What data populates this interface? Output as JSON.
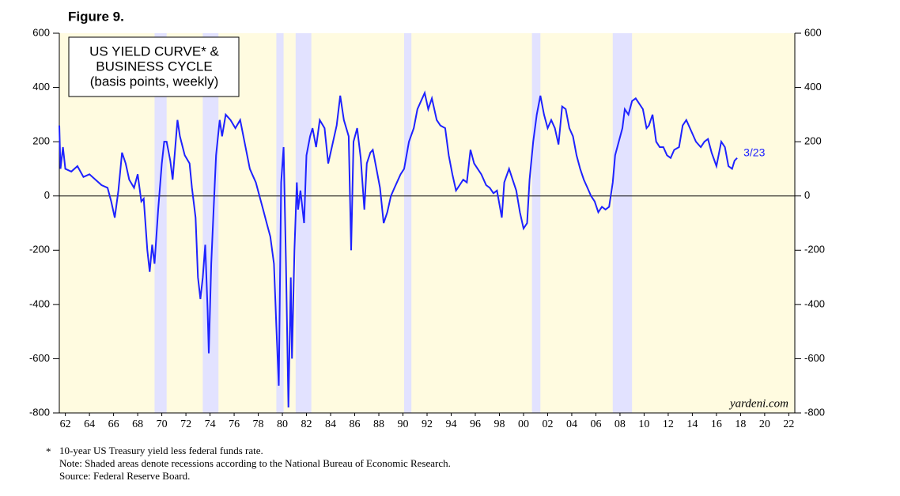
{
  "chart_data": {
    "type": "line",
    "figure_label": "Figure 9.",
    "title": [
      "US YIELD CURVE* &",
      "BUSINESS CYCLE",
      "(basis points, weekly)"
    ],
    "end_label": "3/23",
    "source_mark": "yardeni.com",
    "footnotes": [
      "*",
      "10-year US Treasury yield less federal funds rate.",
      "Note: Shaded areas denote recessions according to the National Bureau of Economic Research.",
      "Source: Federal Reserve Board."
    ],
    "color": "#1e22ff",
    "background": "#fffbe0",
    "recession_color": "#e2e2ff",
    "recessions": [
      [
        1969.9,
        1970.9
      ],
      [
        1973.9,
        1975.2
      ],
      [
        1980.0,
        1980.6
      ],
      [
        1981.6,
        1982.9
      ],
      [
        1990.6,
        1991.2
      ],
      [
        2001.2,
        2001.9
      ],
      [
        2007.9,
        2009.5
      ]
    ],
    "xlim": [
      1962,
      2023
    ],
    "ylim": [
      -800,
      600
    ],
    "yticks": [
      600,
      400,
      200,
      0,
      -200,
      -400,
      -600,
      -800
    ],
    "xticks": [
      {
        "value": 1962.5,
        "label": "62"
      },
      {
        "value": 1964.5,
        "label": "64"
      },
      {
        "value": 1966.5,
        "label": "66"
      },
      {
        "value": 1968.5,
        "label": "68"
      },
      {
        "value": 1970.5,
        "label": "70"
      },
      {
        "value": 1972.5,
        "label": "72"
      },
      {
        "value": 1974.5,
        "label": "74"
      },
      {
        "value": 1976.5,
        "label": "76"
      },
      {
        "value": 1978.5,
        "label": "78"
      },
      {
        "value": 1980.5,
        "label": "80"
      },
      {
        "value": 1982.5,
        "label": "82"
      },
      {
        "value": 1984.5,
        "label": "84"
      },
      {
        "value": 1986.5,
        "label": "86"
      },
      {
        "value": 1988.5,
        "label": "88"
      },
      {
        "value": 1990.5,
        "label": "90"
      },
      {
        "value": 1992.5,
        "label": "92"
      },
      {
        "value": 1994.5,
        "label": "94"
      },
      {
        "value": 1996.5,
        "label": "96"
      },
      {
        "value": 1998.5,
        "label": "98"
      },
      {
        "value": 2000.5,
        "label": "00"
      },
      {
        "value": 2002.5,
        "label": "02"
      },
      {
        "value": 2004.5,
        "label": "04"
      },
      {
        "value": 2006.5,
        "label": "06"
      },
      {
        "value": 2008.5,
        "label": "08"
      },
      {
        "value": 2010.5,
        "label": "10"
      },
      {
        "value": 2012.5,
        "label": "12"
      },
      {
        "value": 2014.5,
        "label": "14"
      },
      {
        "value": 2016.5,
        "label": "16"
      },
      {
        "value": 2018.5,
        "label": "18"
      },
      {
        "value": 2020.5,
        "label": "20"
      },
      {
        "value": 2022.5,
        "label": "22"
      }
    ],
    "x": [
      1962.0,
      1962.1,
      1962.3,
      1962.5,
      1963,
      1963.5,
      1964,
      1964.5,
      1965,
      1965.5,
      1966,
      1966.3,
      1966.6,
      1966.9,
      1967.2,
      1967.5,
      1967.8,
      1968.2,
      1968.5,
      1968.8,
      1969.0,
      1969.3,
      1969.5,
      1969.7,
      1969.9,
      1970.2,
      1970.5,
      1970.7,
      1970.9,
      1971.2,
      1971.4,
      1971.8,
      1972.0,
      1972.4,
      1972.8,
      1973.0,
      1973.3,
      1973.5,
      1973.7,
      1973.9,
      1974.1,
      1974.3,
      1974.4,
      1974.6,
      1974.8,
      1975.0,
      1975.3,
      1975.5,
      1975.8,
      1976.2,
      1976.6,
      1977.0,
      1977.4,
      1977.8,
      1978.0,
      1978.3,
      1978.6,
      1978.9,
      1979.2,
      1979.5,
      1979.8,
      1980.0,
      1980.2,
      1980.4,
      1980.6,
      1980.8,
      1981.0,
      1981.2,
      1981.3,
      1981.5,
      1981.7,
      1981.8,
      1982.0,
      1982.3,
      1982.5,
      1982.8,
      1983.0,
      1983.3,
      1983.6,
      1984.0,
      1984.3,
      1984.6,
      1985.0,
      1985.3,
      1985.6,
      1986.0,
      1986.2,
      1986.4,
      1986.7,
      1987.0,
      1987.3,
      1987.5,
      1987.8,
      1988.0,
      1988.3,
      1988.6,
      1988.9,
      1989.2,
      1989.5,
      1989.8,
      1990.0,
      1990.3,
      1990.6,
      1991.0,
      1991.4,
      1991.7,
      1992.0,
      1992.3,
      1992.6,
      1992.9,
      1993.3,
      1993.6,
      1994.0,
      1994.3,
      1994.6,
      1994.9,
      1995.2,
      1995.5,
      1995.8,
      1996.1,
      1996.4,
      1996.7,
      1997.0,
      1997.4,
      1997.7,
      1998.0,
      1998.3,
      1998.7,
      1998.9,
      1999.3,
      1999.6,
      1999.9,
      2000.2,
      2000.5,
      2000.8,
      2001.0,
      2001.3,
      2001.6,
      2001.9,
      2002.2,
      2002.5,
      2002.8,
      2003.1,
      2003.4,
      2003.7,
      2004.0,
      2004.3,
      2004.6,
      2004.9,
      2005.2,
      2005.5,
      2005.8,
      2006.1,
      2006.4,
      2006.7,
      2007.0,
      2007.3,
      2007.6,
      2007.9,
      2008.1,
      2008.4,
      2008.7,
      2008.9,
      2009.2,
      2009.5,
      2009.8,
      2010.1,
      2010.4,
      2010.7,
      2010.9,
      2011.2,
      2011.5,
      2011.8,
      2012.1,
      2012.4,
      2012.7,
      2013.0,
      2013.4,
      2013.7,
      2014.0,
      2014.4,
      2014.8,
      2015.2,
      2015.5,
      2015.8,
      2016.1,
      2016.5,
      2016.9,
      2017.2,
      2017.5,
      2017.8,
      2018.0,
      2018.22
    ],
    "values": [
      260,
      100,
      180,
      100,
      90,
      110,
      70,
      80,
      60,
      40,
      30,
      -20,
      -80,
      20,
      160,
      120,
      60,
      30,
      80,
      -20,
      -10,
      -200,
      -280,
      -180,
      -250,
      -50,
      120,
      200,
      200,
      130,
      60,
      280,
      220,
      150,
      120,
      30,
      -80,
      -300,
      -380,
      -300,
      -180,
      -420,
      -580,
      -250,
      -50,
      150,
      280,
      220,
      300,
      280,
      250,
      280,
      190,
      100,
      80,
      50,
      0,
      -50,
      -100,
      -150,
      -250,
      -480,
      -700,
      50,
      180,
      -250,
      -780,
      -300,
      -600,
      -200,
      50,
      -50,
      20,
      -100,
      150,
      220,
      250,
      180,
      280,
      250,
      120,
      180,
      260,
      370,
      280,
      220,
      -200,
      200,
      250,
      140,
      -50,
      120,
      160,
      170,
      100,
      30,
      -100,
      -60,
      0,
      30,
      50,
      80,
      100,
      200,
      250,
      320,
      350,
      380,
      320,
      360,
      280,
      260,
      250,
      150,
      80,
      20,
      40,
      60,
      50,
      170,
      120,
      100,
      80,
      40,
      30,
      10,
      20,
      -80,
      50,
      100,
      60,
      20,
      -60,
      -120,
      -100,
      60,
      200,
      300,
      370,
      300,
      250,
      280,
      250,
      190,
      330,
      320,
      250,
      220,
      150,
      100,
      60,
      30,
      0,
      -20,
      -60,
      -40,
      -50,
      -40,
      50,
      150,
      200,
      250,
      320,
      300,
      350,
      360,
      340,
      320,
      250,
      260,
      300,
      200,
      180,
      180,
      150,
      140,
      170,
      180,
      260,
      280,
      240,
      200,
      180,
      200,
      210,
      160,
      110,
      200,
      180,
      110,
      100,
      130,
      140
    ]
  }
}
